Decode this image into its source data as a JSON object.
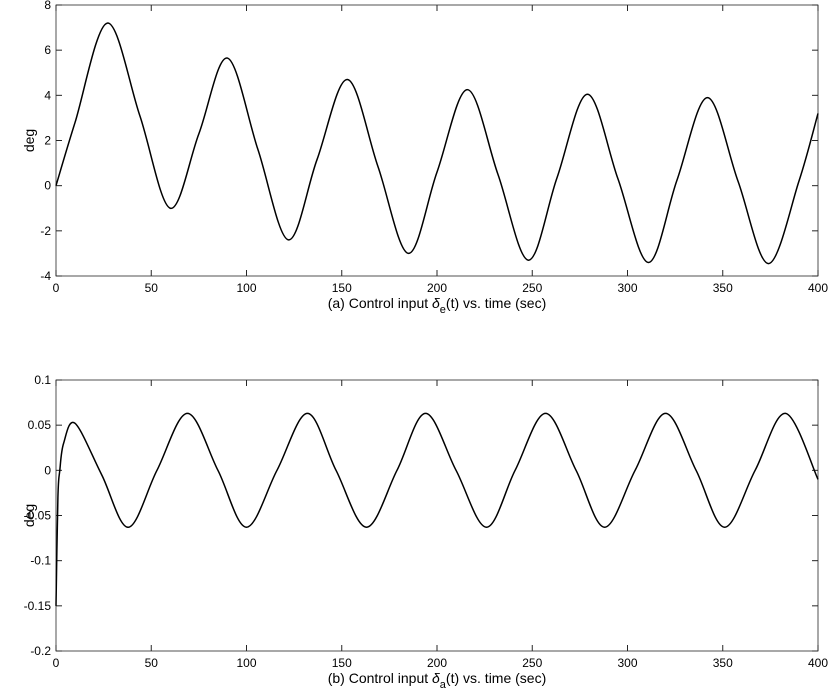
{
  "chart_data": [
    {
      "type": "line",
      "ylabel": "deg",
      "xlabel": [
        "(a) Control input ",
        "δ",
        "e",
        "(t) vs. time (sec)"
      ],
      "x": [
        0,
        10,
        27,
        44,
        60,
        75,
        90,
        106,
        122,
        137,
        153,
        169,
        185,
        200,
        216,
        232,
        248,
        263,
        279,
        295,
        311,
        326,
        342,
        358,
        374,
        390,
        400
      ],
      "values": [
        0,
        2.8,
        7.2,
        3.1,
        -1,
        2.3,
        5.65,
        1.6,
        -2.4,
        1.15,
        4.7,
        0.85,
        -3.0,
        0.6,
        4.25,
        0.5,
        -3.3,
        0.35,
        4.05,
        0.3,
        -3.4,
        0.25,
        3.9,
        0.2,
        -3.45,
        0.2,
        3.2
      ],
      "color": "#000000",
      "xlim": [
        0,
        400
      ],
      "xticks": [
        0,
        50,
        100,
        150,
        200,
        250,
        300,
        350,
        400
      ],
      "ylim": [
        -4,
        8
      ],
      "yticks": [
        -4,
        -2,
        0,
        2,
        4,
        6,
        8
      ],
      "grid": false
    },
    {
      "type": "line",
      "ylabel": "deg",
      "xlabel": [
        "(b) Control input ",
        "δ",
        "a",
        "(t) vs. time (sec)"
      ],
      "x": [
        0,
        1,
        2,
        4,
        10,
        24,
        38,
        53,
        69,
        85,
        100,
        116,
        132,
        147,
        163,
        179,
        194,
        210,
        226,
        241,
        257,
        273,
        288,
        304,
        320,
        336,
        351,
        367,
        383,
        400
      ],
      "values": [
        -0.15,
        -0.03,
        0,
        0.03,
        0.052,
        -0.005,
        -0.063,
        0,
        0.063,
        0,
        -0.063,
        0,
        0.063,
        0,
        -0.063,
        0,
        0.063,
        0,
        -0.063,
        0,
        0.063,
        0,
        -0.063,
        0,
        0.063,
        0,
        -0.063,
        0,
        0.063,
        -0.01
      ],
      "color": "#000000",
      "xlim": [
        0,
        400
      ],
      "xticks": [
        0,
        50,
        100,
        150,
        200,
        250,
        300,
        350,
        400
      ],
      "ylim": [
        -0.2,
        0.1
      ],
      "yticks": [
        -0.2,
        -0.15,
        -0.1,
        -0.05,
        0,
        0.05,
        0.1
      ],
      "grid": false
    }
  ]
}
